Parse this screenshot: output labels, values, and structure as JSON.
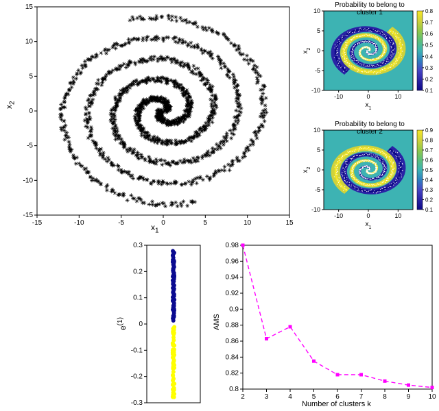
{
  "spiral_plot": {
    "type": "scatter",
    "xlabel": "x",
    "xlabel_sub": "1",
    "ylabel": "x",
    "ylabel_sub": "2",
    "xlim": [
      -15,
      15
    ],
    "ylim": [
      -15,
      15
    ],
    "xticks": [
      -15,
      -10,
      -5,
      0,
      5,
      10,
      15
    ],
    "yticks": [
      -15,
      -10,
      -5,
      0,
      5,
      10,
      15
    ],
    "marker_color": "#000000",
    "marker_size": 3,
    "n_points_per_arm": 750,
    "n_arms": 2,
    "arm_offset": 3.14159,
    "jitter": 0.35,
    "background_color": "#ffffff",
    "label_fontsize": 12,
    "tick_fontsize": 10
  },
  "cluster1": {
    "type": "heatmap",
    "title": "Probability to belong to cluster 1",
    "xlabel": "x",
    "xlabel_sub": "1",
    "ylabel": "x",
    "ylabel_sub": "2",
    "xlim": [
      -15,
      15
    ],
    "ylim": [
      -10,
      10
    ],
    "xticks": [
      -10,
      0,
      10
    ],
    "yticks": [
      -10,
      -5,
      0,
      5,
      10
    ],
    "colorbar_ticks": [
      0.1,
      0.2,
      0.3,
      0.4,
      0.5,
      0.6,
      0.7,
      0.8
    ],
    "colormap": [
      "#0d0887",
      "#2a23a5",
      "#4745c4",
      "#307fc0",
      "#3db3b3",
      "#5cbf7a",
      "#92c84a",
      "#d0d23a",
      "#f6e726"
    ],
    "background_color": "#3db3b3",
    "overlay_color": "#ffffff"
  },
  "cluster2": {
    "type": "heatmap",
    "title": "Probability to belong to cluster 2",
    "xlabel": "x",
    "xlabel_sub": "1",
    "ylabel": "x",
    "ylabel_sub": "2",
    "xlim": [
      -15,
      15
    ],
    "ylim": [
      -10,
      10
    ],
    "xticks": [
      -10,
      0,
      10
    ],
    "yticks": [
      -10,
      -5,
      0,
      5,
      10
    ],
    "colorbar_ticks": [
      0.1,
      0.2,
      0.3,
      0.4,
      0.5,
      0.6,
      0.7,
      0.8,
      0.9
    ],
    "colormap": [
      "#0d0887",
      "#2a23a5",
      "#4745c4",
      "#307fc0",
      "#3db3b3",
      "#5cbf7a",
      "#92c84a",
      "#d0d23a",
      "#f6e726"
    ],
    "background_color": "#3db3b3",
    "overlay_color": "#ffffff"
  },
  "eigenvector": {
    "type": "scatter",
    "ylabel": "e",
    "ylabel_sup": "(1)",
    "ylim": [
      -0.3,
      0.3
    ],
    "yticks": [
      -0.3,
      -0.2,
      -0.1,
      0,
      0.1,
      0.2,
      0.3
    ],
    "series": [
      {
        "color": "#0b0b90",
        "y_range": [
          0.01,
          0.28
        ],
        "n": 80,
        "jitter": 1.2
      },
      {
        "color": "#ffff00",
        "y_range": [
          -0.28,
          -0.01
        ],
        "n": 80,
        "jitter": 1.2
      }
    ],
    "background_color": "#ffffff",
    "tick_fontsize": 10
  },
  "ams_plot": {
    "type": "line",
    "xlabel": "Number of clusters k",
    "ylabel": "AMS",
    "xlim": [
      2,
      10
    ],
    "ylim": [
      0.8,
      0.98
    ],
    "xticks": [
      2,
      3,
      4,
      5,
      6,
      7,
      8,
      9,
      10
    ],
    "yticks": [
      0.8,
      0.82,
      0.84,
      0.86,
      0.88,
      0.9,
      0.92,
      0.94,
      0.96,
      0.98
    ],
    "x": [
      2,
      3,
      4,
      5,
      6,
      7,
      8,
      9,
      10
    ],
    "y": [
      0.98,
      0.863,
      0.878,
      0.835,
      0.818,
      0.818,
      0.81,
      0.805,
      0.802
    ],
    "line_color": "#ff00ff",
    "marker_color": "#ff00ff",
    "line_style": "dashed",
    "marker": "square",
    "marker_size": 5,
    "background_color": "#ffffff",
    "label_fontsize": 11,
    "tick_fontsize": 10
  }
}
